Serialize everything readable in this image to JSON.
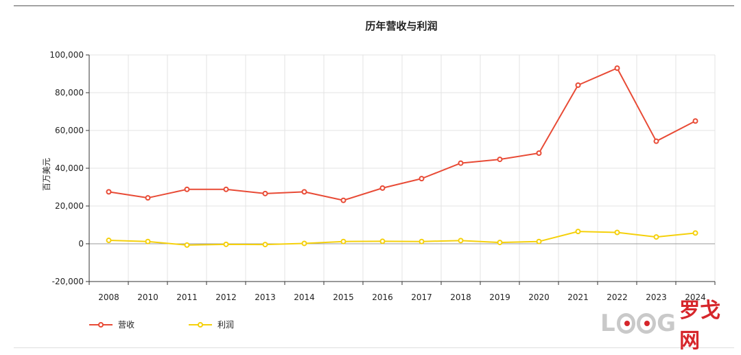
{
  "chart_data": {
    "type": "line",
    "title": "历年营收与利润",
    "xlabel": "",
    "ylabel": "百万美元",
    "categories": [
      "2008",
      "2010",
      "2011",
      "2012",
      "2013",
      "2014",
      "2015",
      "2016",
      "2017",
      "2018",
      "2019",
      "2020",
      "2021",
      "2022",
      "2023",
      "2024"
    ],
    "ylim": [
      -20000,
      100000
    ],
    "yticks": [
      "100,000",
      "80,000",
      "60,000",
      "40,000",
      "20,000",
      "0",
      "-20,000"
    ],
    "ytick_values": [
      100000,
      80000,
      60000,
      40000,
      20000,
      0,
      -20000
    ],
    "grid": true,
    "legend_position": "bottom-left",
    "series": [
      {
        "name": "营收",
        "color": "#e84a35",
        "values": [
          27500,
          24300,
          28800,
          28800,
          26600,
          27500,
          23000,
          29500,
          34500,
          42700,
          44700,
          48000,
          84000,
          93000,
          54300,
          65000
        ]
      },
      {
        "name": "利润",
        "color": "#f5d00a",
        "values": [
          1800,
          1200,
          -700,
          -300,
          -400,
          200,
          1200,
          1300,
          1200,
          1700,
          700,
          1200,
          6500,
          6000,
          3600,
          5700
        ]
      }
    ]
  },
  "watermark": {
    "latin_left": "L",
    "latin_right": "G",
    "cn": "罗戈网"
  }
}
